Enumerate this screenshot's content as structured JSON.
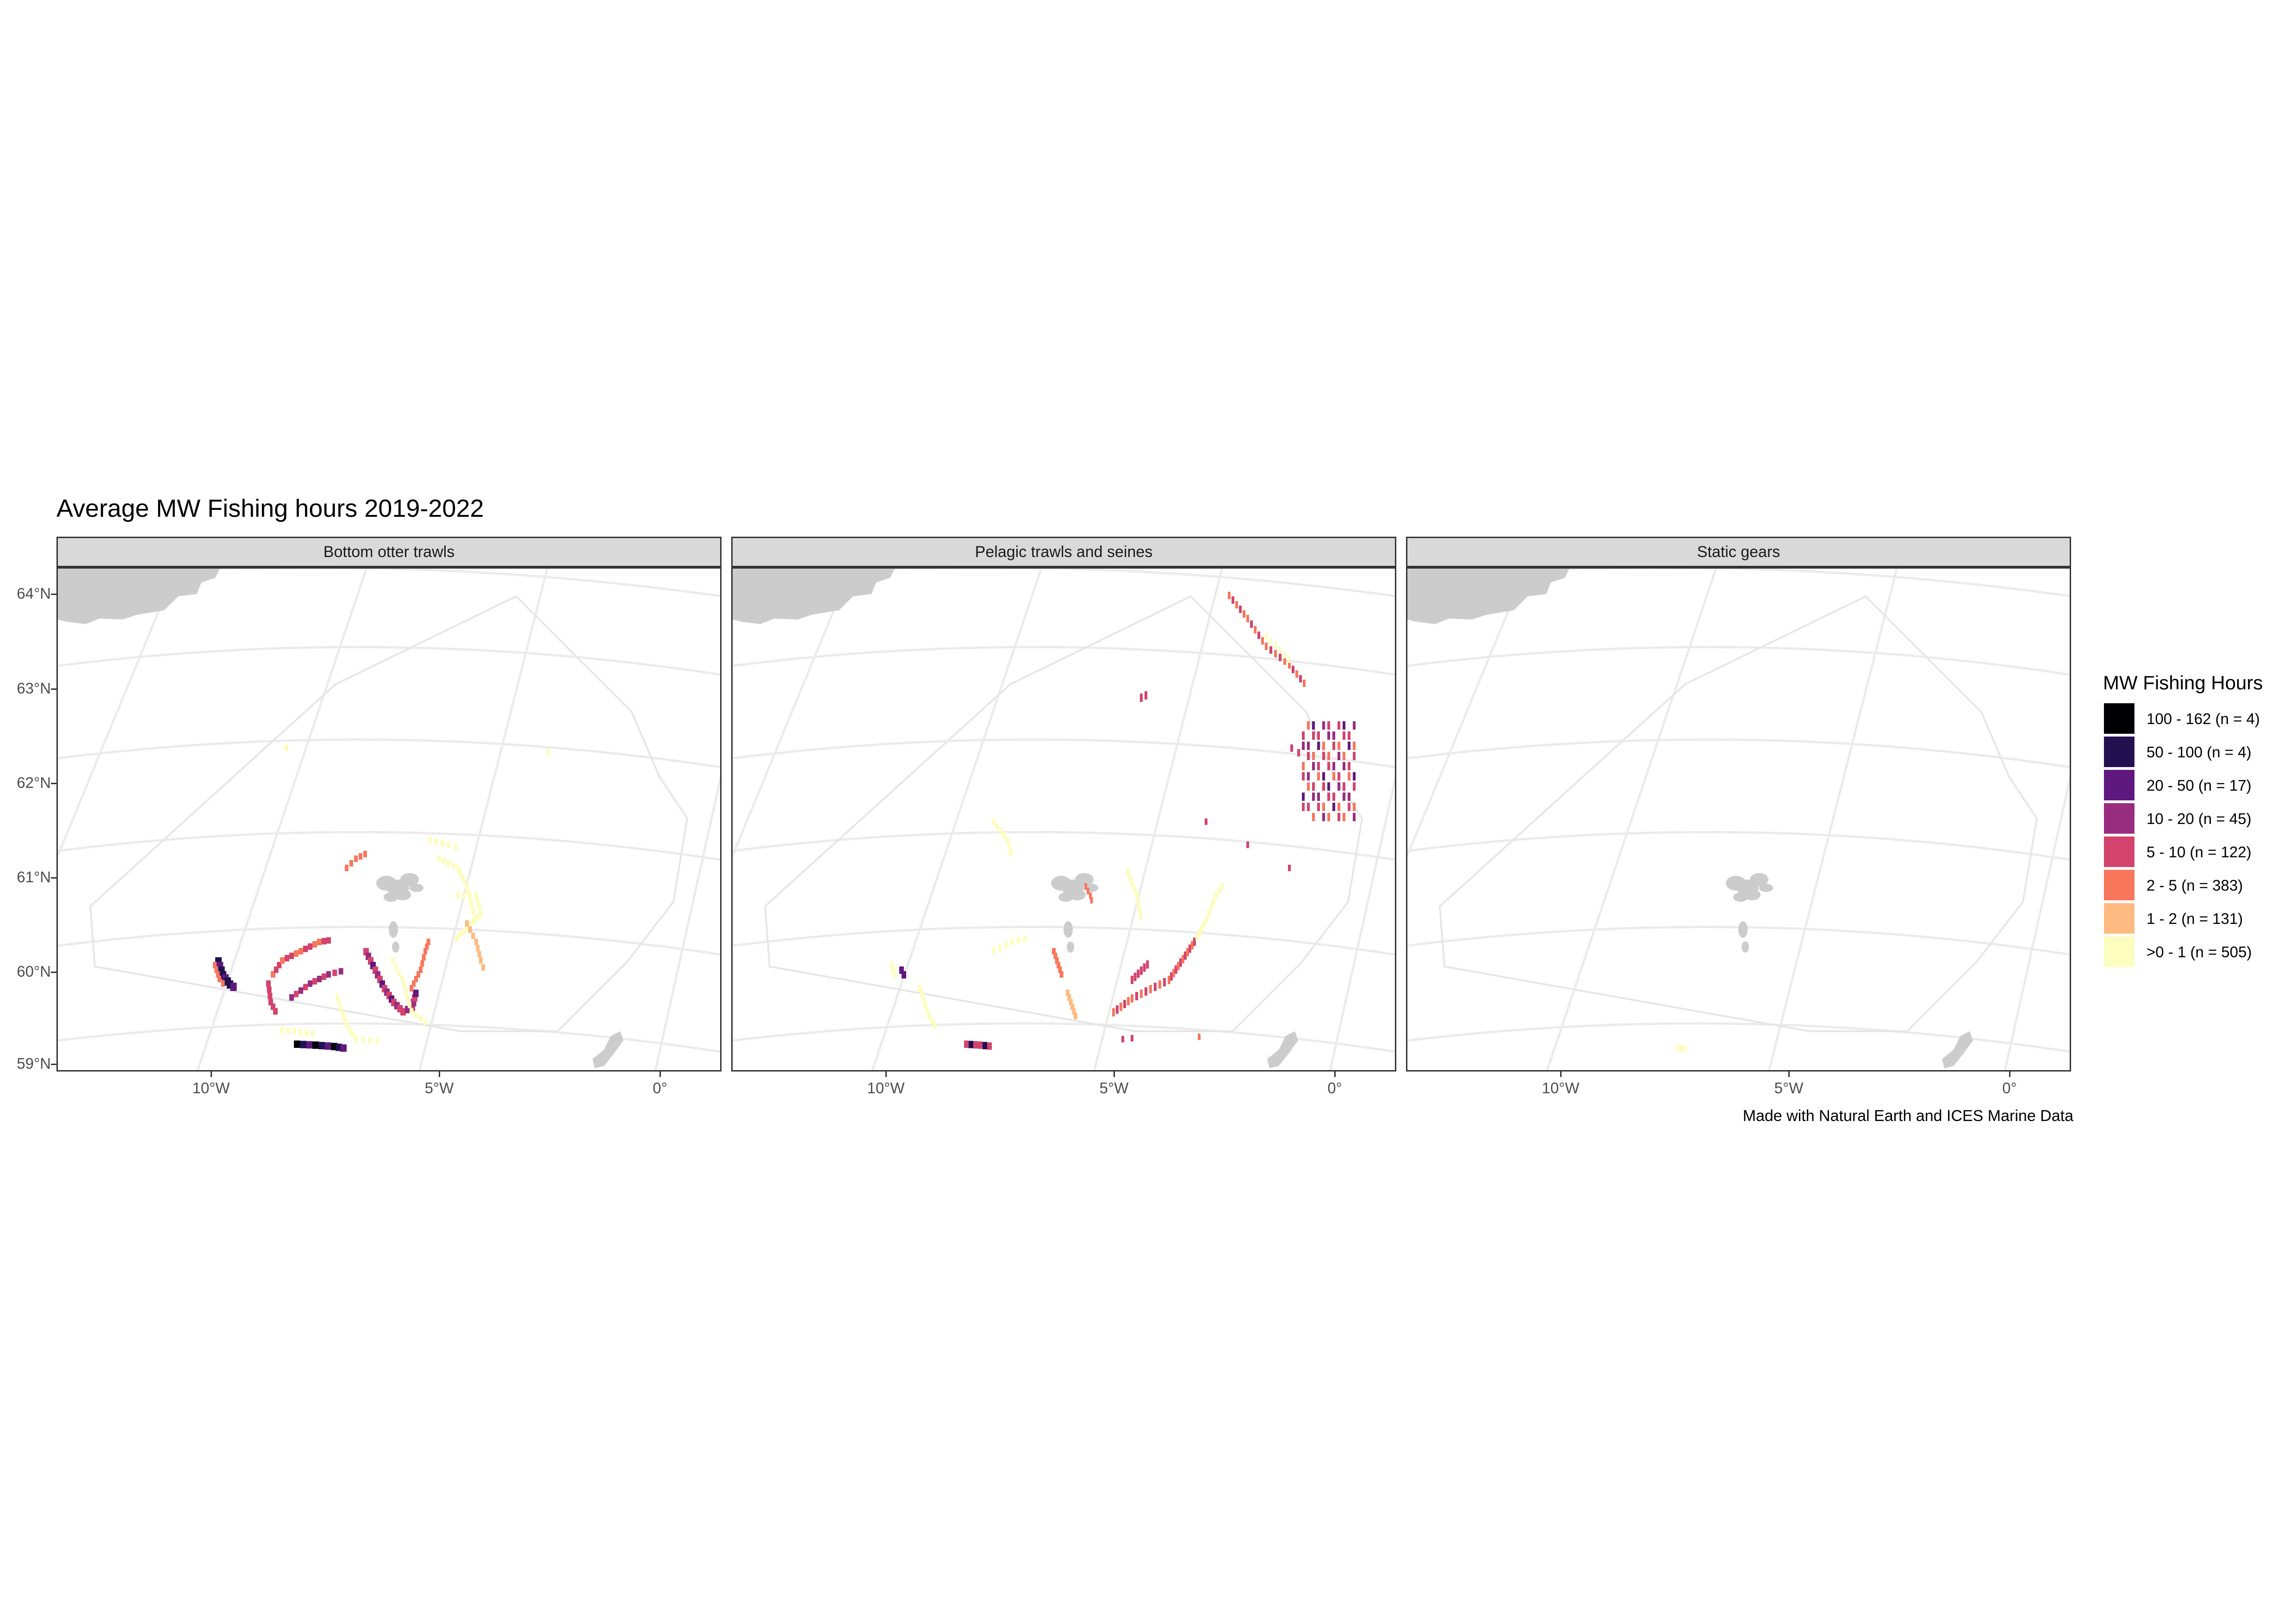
{
  "title": "Average MW Fishing hours 2019-2022",
  "caption": "Made with Natural Earth and ICES Marine Data",
  "panels": [
    {
      "label": "Bottom otter trawls"
    },
    {
      "label": "Pelagic trawls and seines"
    },
    {
      "label": "Static gears"
    }
  ],
  "axes": {
    "y_labels": [
      "64°N",
      "63°N",
      "62°N",
      "61°N",
      "60°N",
      "59°N"
    ],
    "x_labels": [
      "10°W",
      "5°W",
      "0°"
    ]
  },
  "legend": {
    "title": "MW Fishing Hours",
    "items": [
      {
        "label": "100 - 162 (n = 4)",
        "color": "#000004"
      },
      {
        "label": "50 - 100 (n = 4)",
        "color": "#221150"
      },
      {
        "label": "20 - 50 (n = 17)",
        "color": "#5f187f"
      },
      {
        "label": "10 - 20 (n = 45)",
        "color": "#982d80"
      },
      {
        "label": "5 - 10 (n = 122)",
        "color": "#d3436e"
      },
      {
        "label": "2 - 5 (n = 383)",
        "color": "#f8765c"
      },
      {
        "label": "1 - 2 (n = 131)",
        "color": "#febb81"
      },
      {
        "label": ">0 - 1 (n = 505)",
        "color": "#fcfdbf"
      }
    ]
  },
  "colors": {
    "land": "#cccccc",
    "graticule": "#ebebeb",
    "region_outline": "#e6e6e6",
    "strip": "#d9d9d9",
    "frame": "#333333"
  }
}
